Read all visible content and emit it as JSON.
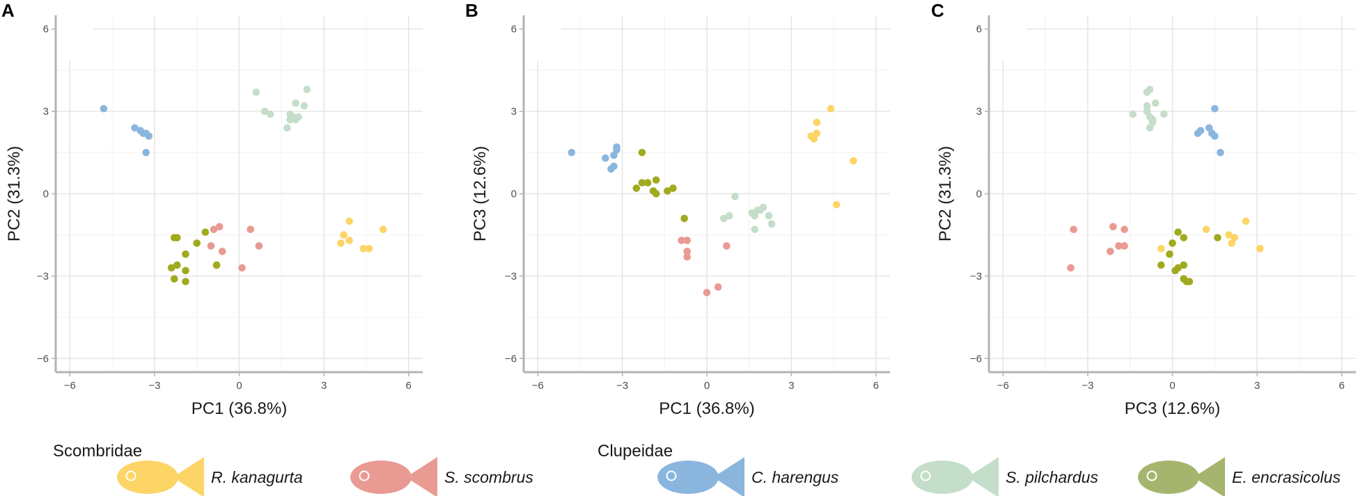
{
  "chart_data": [
    {
      "panel": "A",
      "type": "scatter",
      "xlabel": "PC1 (36.8%)",
      "ylabel": "PC2 (31.3%)",
      "xlim": [
        -6.5,
        6.5
      ],
      "ylim": [
        -6.5,
        6.5
      ],
      "ticks": [
        -6,
        -3,
        0,
        3,
        6
      ],
      "tick_labels": [
        "−6",
        "−3",
        "0",
        "3",
        "6"
      ],
      "grid": true,
      "series": [
        {
          "name": "R. kanagurta",
          "x": [
            3.9,
            5.1,
            3.7,
            3.9,
            3.6,
            4.4,
            4.6
          ],
          "y": [
            -1.0,
            -1.3,
            -1.5,
            -1.7,
            -1.8,
            -2.0,
            -2.0
          ]
        },
        {
          "name": "S. scombrus",
          "x": [
            -0.7,
            0.4,
            -0.9,
            -0.6,
            0.7,
            -1.0,
            -0.8,
            0.1
          ],
          "y": [
            -1.2,
            -1.3,
            -1.3,
            -2.1,
            -1.9,
            -1.9,
            -2.6,
            -2.7
          ]
        },
        {
          "name": "C. harengus",
          "x": [
            -4.8,
            -3.7,
            -3.5,
            -3.4,
            -3.3,
            -3.2,
            -3.3
          ],
          "y": [
            3.1,
            2.4,
            2.3,
            2.2,
            2.2,
            2.1,
            1.5
          ]
        },
        {
          "name": "S. pilchardus",
          "x": [
            0.6,
            2.4,
            2.0,
            2.3,
            0.9,
            1.1,
            1.8,
            2.1,
            1.9,
            1.8,
            2.0,
            1.7
          ],
          "y": [
            3.7,
            3.8,
            3.3,
            3.2,
            3.0,
            2.9,
            2.9,
            2.8,
            2.8,
            2.7,
            2.7,
            2.4
          ]
        },
        {
          "name": "E. encrasicolus",
          "x": [
            -2.3,
            -2.2,
            -1.2,
            -1.5,
            -1.9,
            -2.2,
            -2.4,
            -1.9,
            -0.8,
            -2.3,
            -1.9
          ],
          "y": [
            -1.6,
            -1.6,
            -1.4,
            -1.8,
            -2.2,
            -2.6,
            -2.7,
            -2.8,
            -2.6,
            -3.1,
            -3.2
          ]
        }
      ]
    },
    {
      "panel": "B",
      "type": "scatter",
      "xlabel": "PC1 (36.8%)",
      "ylabel": "PC3 (12.6%)",
      "xlim": [
        -6.5,
        6.5
      ],
      "ylim": [
        -6.5,
        6.5
      ],
      "ticks": [
        -6,
        -3,
        0,
        3,
        6
      ],
      "tick_labels": [
        "−6",
        "−3",
        "0",
        "3",
        "6"
      ],
      "grid": true,
      "series": [
        {
          "name": "R. kanagurta",
          "x": [
            4.4,
            3.9,
            3.7,
            3.9,
            3.8,
            5.2,
            4.6
          ],
          "y": [
            3.1,
            2.6,
            2.1,
            2.2,
            2.0,
            1.2,
            -0.4
          ]
        },
        {
          "name": "S. scombrus",
          "x": [
            -0.9,
            -0.7,
            -0.7,
            -0.7,
            0.7,
            0.4,
            0.0
          ],
          "y": [
            -1.7,
            -1.7,
            -2.1,
            -2.3,
            -1.9,
            -3.4,
            -3.6
          ]
        },
        {
          "name": "C. harengus",
          "x": [
            -4.8,
            -3.2,
            -3.3,
            -3.6,
            -3.3,
            -3.4,
            -3.2
          ],
          "y": [
            1.5,
            1.7,
            1.4,
            1.3,
            1.0,
            0.9,
            1.6
          ]
        },
        {
          "name": "S. pilchardus",
          "x": [
            1.0,
            2.0,
            1.8,
            1.6,
            1.7,
            2.2,
            2.3,
            0.8,
            0.6,
            1.7,
            1.9
          ],
          "y": [
            -0.1,
            -0.5,
            -0.6,
            -0.7,
            -0.8,
            -0.8,
            -1.1,
            -0.8,
            -0.9,
            -1.3,
            -0.6
          ]
        },
        {
          "name": "E. encrasicolus",
          "x": [
            -2.3,
            -1.8,
            -2.3,
            -2.1,
            -2.5,
            -1.9,
            -1.2,
            -1.4,
            -1.8,
            -0.8
          ],
          "y": [
            1.5,
            0.5,
            0.4,
            0.4,
            0.2,
            0.1,
            0.2,
            0.1,
            0.0,
            -0.9
          ]
        }
      ]
    },
    {
      "panel": "C",
      "type": "scatter",
      "xlabel": "PC3 (12.6%)",
      "ylabel": "PC2 (31.3%)",
      "xlim": [
        -6.5,
        6.5
      ],
      "ylim": [
        -6.5,
        6.5
      ],
      "ticks": [
        -6,
        -3,
        0,
        3,
        6
      ],
      "tick_labels": [
        "−6",
        "−3",
        "0",
        "3",
        "6"
      ],
      "grid": true,
      "series": [
        {
          "name": "R. kanagurta",
          "x": [
            2.6,
            1.2,
            2.0,
            2.2,
            2.1,
            -0.4,
            3.1
          ],
          "y": [
            -1.0,
            -1.3,
            -1.5,
            -1.6,
            -1.8,
            -2.0,
            -2.0
          ]
        },
        {
          "name": "S. scombrus",
          "x": [
            -3.5,
            -2.1,
            -1.7,
            -1.9,
            -1.7,
            -2.2,
            -3.6
          ],
          "y": [
            -1.3,
            -1.2,
            -1.3,
            -1.9,
            -1.9,
            -2.1,
            -2.7
          ]
        },
        {
          "name": "C. harengus",
          "x": [
            1.5,
            1.3,
            1.0,
            0.9,
            1.4,
            1.5,
            1.7
          ],
          "y": [
            3.1,
            2.4,
            2.3,
            2.2,
            2.2,
            2.1,
            1.5
          ]
        },
        {
          "name": "S. pilchardus",
          "x": [
            -0.8,
            -0.9,
            -0.9,
            -0.6,
            -0.9,
            -1.4,
            -0.3,
            -0.8,
            -0.7,
            -0.7,
            -0.8
          ],
          "y": [
            3.8,
            3.7,
            3.2,
            3.3,
            3.0,
            2.9,
            2.9,
            2.8,
            2.7,
            2.6,
            2.4
          ]
        },
        {
          "name": "E. encrasicolus",
          "x": [
            0.2,
            0.4,
            1.6,
            0.0,
            -0.1,
            -0.4,
            0.2,
            0.4,
            0.1,
            0.4,
            0.5,
            0.6
          ],
          "y": [
            -1.4,
            -1.6,
            -1.6,
            -1.8,
            -2.2,
            -2.6,
            -2.7,
            -2.6,
            -2.8,
            -3.1,
            -3.2,
            -3.2
          ]
        }
      ]
    }
  ],
  "colors": {
    "R. kanagurta": "#fdd566",
    "S. scombrus": "#e99a92",
    "C. harengus": "#8ab6de",
    "S. pilchardus": "#c4dec9",
    "E. encrasicolus": "#a0aa1e",
    "E. encrasicolus_fish": "#a6b56d"
  },
  "legend": {
    "families": [
      {
        "name": "Scombridae",
        "species": [
          "R. kanagurta",
          "S. scombrus"
        ]
      },
      {
        "name": "Clupeidae",
        "species": [
          "C. harengus",
          "S. pilchardus",
          "E. encrasicolus"
        ]
      }
    ]
  }
}
